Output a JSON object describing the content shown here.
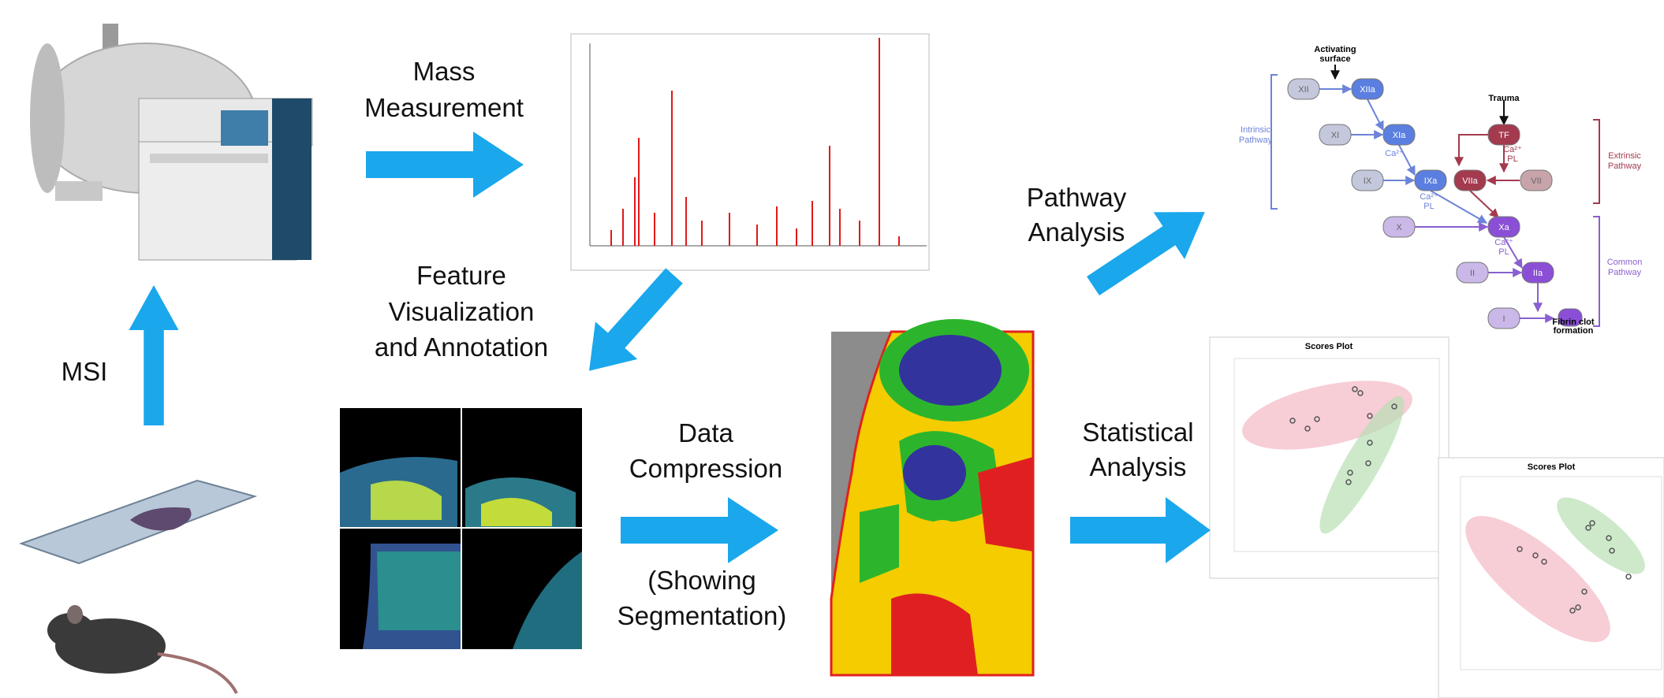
{
  "labels": {
    "mass_measurement": [
      "Mass",
      "Measurement"
    ],
    "msi": "MSI",
    "feature": [
      "Feature",
      "Visualization",
      "and Annotation"
    ],
    "compression": [
      "Data",
      "Compression"
    ],
    "segmentation": [
      "(Showing",
      "Segmentation)"
    ],
    "pathway": [
      "Pathway",
      "Analysis"
    ],
    "statistical": [
      "Statistical",
      "Analysis"
    ]
  },
  "pathway_diagram": {
    "activating": [
      "Activating",
      "surface"
    ],
    "trauma": "Trauma",
    "intrinsic": [
      "Intrinsic",
      "Pathway"
    ],
    "extrinsic": [
      "Extrinsic",
      "Pathway"
    ],
    "common": [
      "Common",
      "Pathway"
    ],
    "nodes": [
      "XII",
      "XIIa",
      "XI",
      "XIa",
      "IX",
      "IXa",
      "VIIa",
      "VII",
      "TF",
      "X",
      "Xa",
      "II",
      "IIa",
      "I"
    ],
    "fibrin": [
      "Fibrin clot",
      "formation"
    ],
    "calcium": "Ca²⁺",
    "pl": "PL"
  },
  "scores_plots": [
    {
      "title": "Scores Plot"
    },
    {
      "title": "Scores Plot"
    }
  ]
}
